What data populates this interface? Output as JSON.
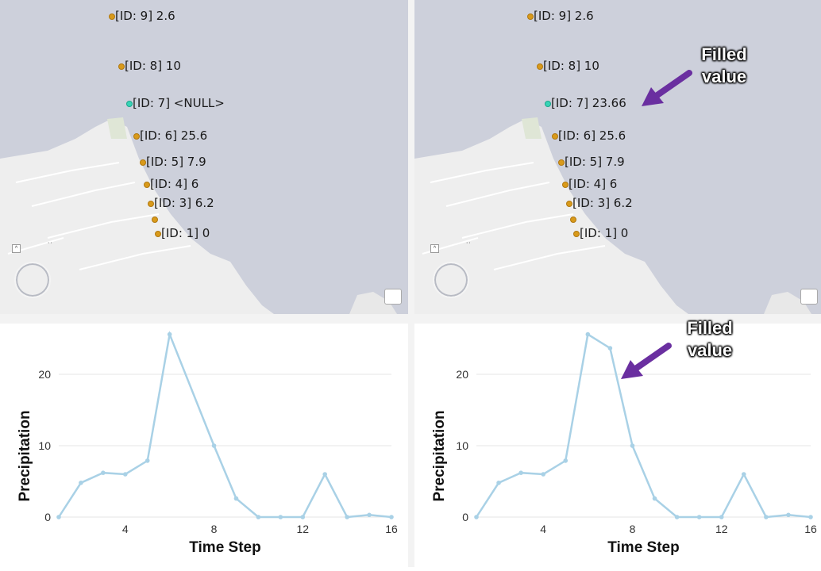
{
  "maps": [
    {
      "id": "before",
      "points": [
        {
          "label": "[ID: 9] 2.6",
          "selected": false
        },
        {
          "label": "[ID: 8] 10",
          "selected": false
        },
        {
          "label": "[ID: 7] <NULL>",
          "selected": true
        },
        {
          "label": "[ID: 6] 25.6",
          "selected": false
        },
        {
          "label": "[ID: 5] 7.9",
          "selected": false
        },
        {
          "label": "[ID: 4] 6",
          "selected": false
        },
        {
          "label": "[ID: 3] 6.2",
          "selected": false
        },
        {
          "label": "",
          "selected": false
        },
        {
          "label": "[ID: 1] 0",
          "selected": false
        }
      ]
    },
    {
      "id": "after",
      "points": [
        {
          "label": "[ID: 9] 2.6",
          "selected": false
        },
        {
          "label": "[ID: 8] 10",
          "selected": false
        },
        {
          "label": "[ID: 7] 23.66",
          "selected": true
        },
        {
          "label": "[ID: 6] 25.6",
          "selected": false
        },
        {
          "label": "[ID: 5] 7.9",
          "selected": false
        },
        {
          "label": "[ID: 4] 6",
          "selected": false
        },
        {
          "label": "[ID: 3] 6.2",
          "selected": false
        },
        {
          "label": "",
          "selected": false
        },
        {
          "label": "[ID: 1] 0",
          "selected": false
        }
      ]
    }
  ],
  "callouts": {
    "map": {
      "line1": "Filled",
      "line2": "value"
    },
    "chart": {
      "line1": "Filled",
      "line2": "value"
    }
  },
  "colors": {
    "map_water": "#cdd0db",
    "map_land": "#eeeeee",
    "point": "#d99a1a",
    "point_selected": "#37d4b6",
    "series_line": "#a9d1e6",
    "arrow": "#6a2fa0"
  },
  "icons": {
    "navigator": "compass-rotate-icon",
    "legend": "legend-icon",
    "collapse": "chevron-up-icon"
  },
  "chart_data": [
    {
      "type": "line",
      "xlabel": "Time Step",
      "ylabel": "Precipitation",
      "xlim": [
        1,
        16
      ],
      "ylim": [
        0,
        26
      ],
      "xticks": [
        4,
        8,
        12,
        16
      ],
      "yticks": [
        0,
        10,
        20
      ],
      "grid": true,
      "x": [
        1,
        2,
        3,
        4,
        5,
        6,
        8,
        9,
        10,
        11,
        12,
        13,
        14,
        15,
        16
      ],
      "y": [
        0,
        4.8,
        6.2,
        6,
        7.9,
        25.6,
        10,
        2.6,
        0,
        0,
        0,
        6,
        0,
        0.3,
        0
      ]
    },
    {
      "type": "line",
      "xlabel": "Time Step",
      "ylabel": "Precipitation",
      "xlim": [
        1,
        16
      ],
      "ylim": [
        0,
        26
      ],
      "xticks": [
        4,
        8,
        12,
        16
      ],
      "yticks": [
        0,
        10,
        20
      ],
      "grid": true,
      "x": [
        1,
        2,
        3,
        4,
        5,
        6,
        7,
        8,
        9,
        10,
        11,
        12,
        13,
        14,
        15,
        16
      ],
      "y": [
        0,
        4.8,
        6.2,
        6,
        7.9,
        25.6,
        23.66,
        10,
        2.6,
        0,
        0,
        0,
        6,
        0,
        0.3,
        0
      ]
    }
  ]
}
